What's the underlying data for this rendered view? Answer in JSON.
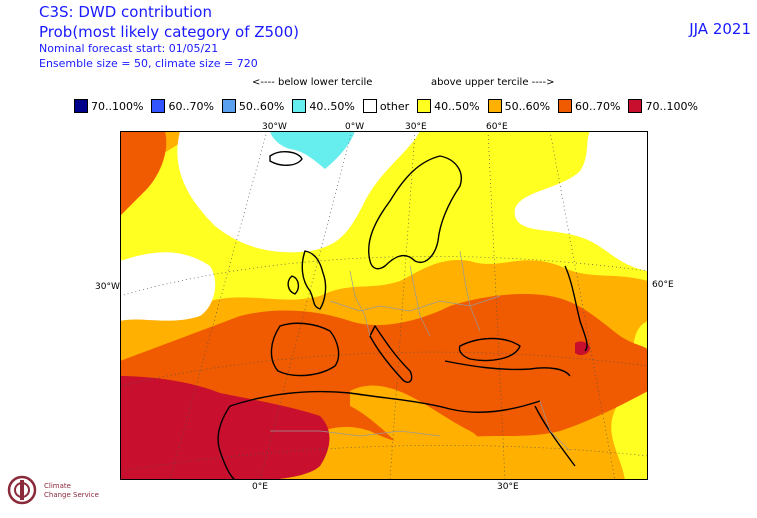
{
  "header": {
    "title": "C3S: DWD contribution",
    "subtitle": "Prob(most likely category of Z500)",
    "forecast_start": "Nominal forecast start: 01/05/21",
    "ensemble": "Ensemble size = 50, climate size = 720",
    "season": "JJA 2021"
  },
  "legend": {
    "below_label": "<---- below lower tercile",
    "above_label": "above upper tercile ---->",
    "items": [
      {
        "label": "70..100%",
        "color": "#00008b"
      },
      {
        "label": "60..70%",
        "color": "#3355ff"
      },
      {
        "label": "50..60%",
        "color": "#5aa0ee"
      },
      {
        "label": "40..50%",
        "color": "#66eeee"
      },
      {
        "label": "other",
        "color": "#ffffff"
      },
      {
        "label": "40..50%",
        "color": "#ffff22"
      },
      {
        "label": "50..60%",
        "color": "#ffb000"
      },
      {
        "label": "60..70%",
        "color": "#f05a00"
      },
      {
        "label": "70..100%",
        "color": "#c8102e"
      }
    ]
  },
  "grid_labels": {
    "top": [
      "30°W",
      "0°W",
      "30°E",
      "60°E"
    ],
    "left": "30°W",
    "right": "60°E",
    "bottom": [
      "0°E",
      "30°E"
    ]
  },
  "logo": {
    "line1": "Climate",
    "line2": "Change Service"
  }
}
